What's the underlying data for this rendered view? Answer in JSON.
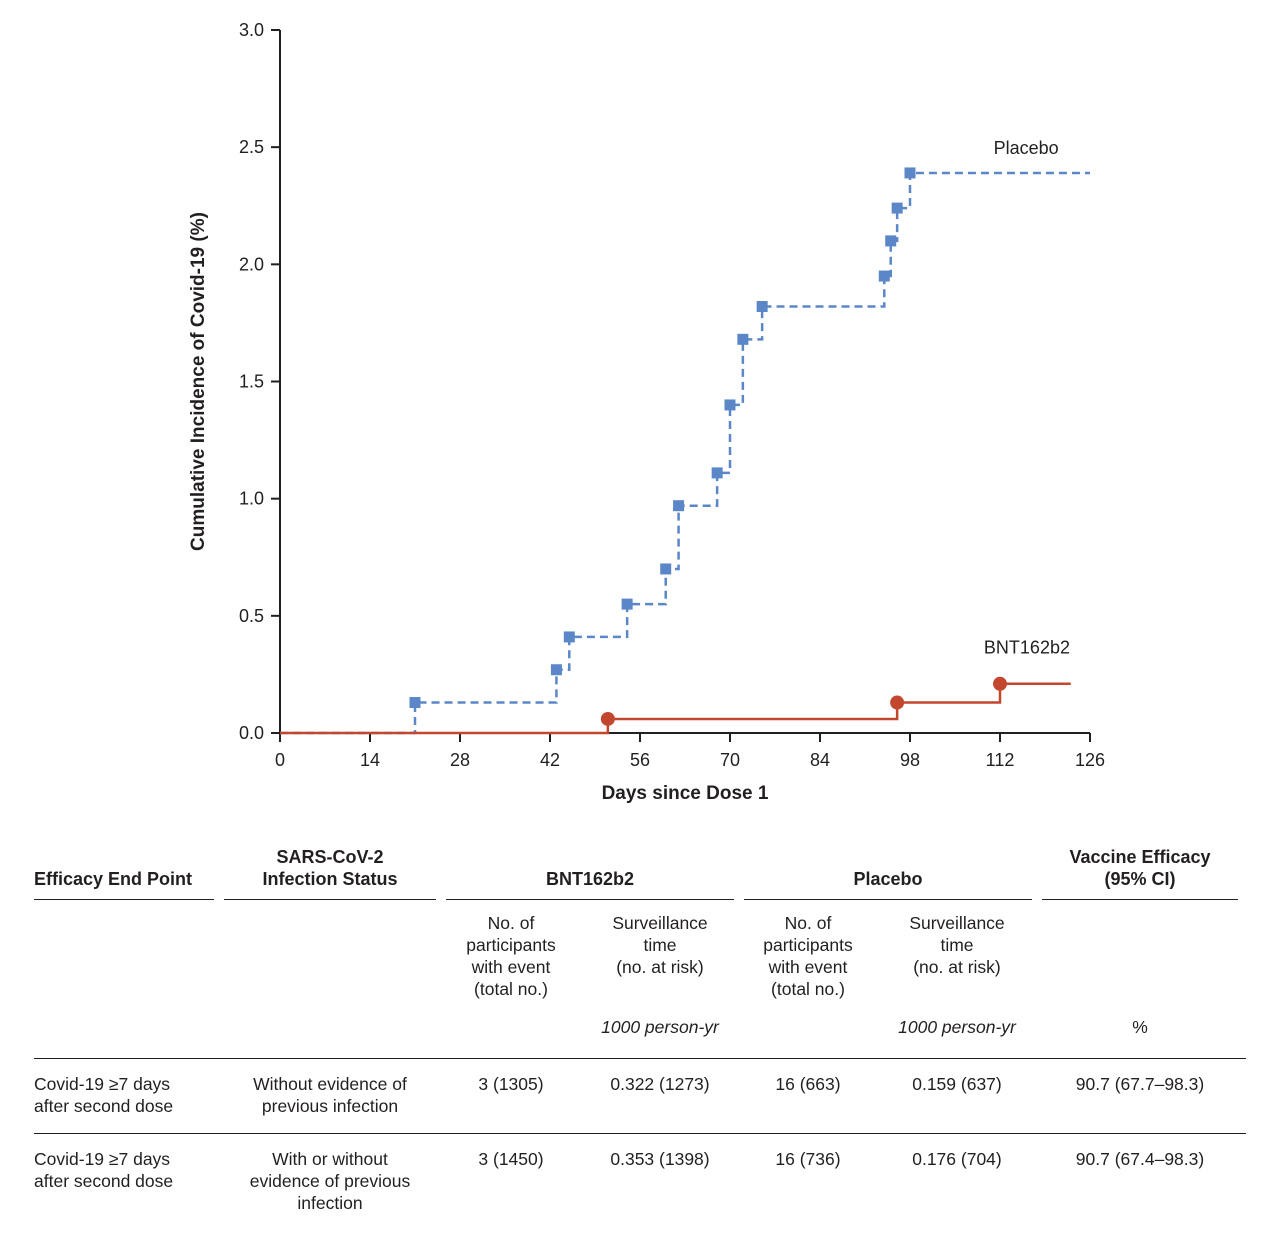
{
  "chart_data": {
    "type": "line",
    "subtype": "cumulative-incidence-step",
    "title": "",
    "xlabel": "Days since Dose 1",
    "ylabel": "Cumulative Incidence of Covid-19 (%)",
    "xlim": [
      0,
      126
    ],
    "ylim": [
      0,
      3.0
    ],
    "x_ticks": [
      0,
      14,
      28,
      42,
      56,
      70,
      84,
      98,
      112,
      126
    ],
    "y_ticks": [
      0.0,
      0.5,
      1.0,
      1.5,
      2.0,
      2.5,
      3.0
    ],
    "grid": false,
    "legend_position": "inline-labels",
    "series": [
      {
        "name": "Placebo",
        "color": "#5b87c8",
        "line_style": "dashed",
        "marker": "square",
        "events": [
          [
            21,
            0.13
          ],
          [
            43,
            0.27
          ],
          [
            45,
            0.41
          ],
          [
            54,
            0.55
          ],
          [
            60,
            0.7
          ],
          [
            62,
            0.97
          ],
          [
            68,
            1.11
          ],
          [
            70,
            1.4
          ],
          [
            72,
            1.68
          ],
          [
            75,
            1.82
          ],
          [
            94,
            1.95
          ],
          [
            95,
            2.1
          ],
          [
            96,
            2.24
          ],
          [
            98,
            2.39
          ]
        ],
        "end_x": 126,
        "label_pos": [
          111,
          2.47
        ]
      },
      {
        "name": "BNT162b2",
        "color": "#c2472e",
        "line_style": "solid",
        "marker": "circle",
        "events": [
          [
            51,
            0.06
          ],
          [
            96,
            0.13
          ],
          [
            112,
            0.21
          ]
        ],
        "end_x": 123,
        "label_pos": [
          109.5,
          0.34
        ]
      }
    ]
  },
  "table": {
    "group_headers": {
      "endpoint": "Efficacy End Point",
      "status": "SARS-CoV-2\nInfection Status",
      "bnt": "BNT162b2",
      "placebo": "Placebo",
      "efficacy": "Vaccine Efficacy\n(95% CI)"
    },
    "sub_headers": {
      "participants": "No. of\nparticipants\nwith event\n(total no.)",
      "surveillance": "Surveillance\ntime\n(no. at risk)"
    },
    "units": {
      "person_yr": "1000 person-yr",
      "percent": "%"
    },
    "rows": [
      {
        "endpoint": "Covid-19 ≥7 days\nafter second dose",
        "status": "Without evidence of\nprevious infection",
        "bnt_events": "3 (1305)",
        "bnt_surv": "0.322 (1273)",
        "placebo_events": "16 (663)",
        "placebo_surv": "0.159 (637)",
        "efficacy": "90.7 (67.7–98.3)"
      },
      {
        "endpoint": "Covid-19 ≥7 days\nafter second dose",
        "status": "With or without\nevidence of previous\ninfection",
        "bnt_events": "3 (1450)",
        "bnt_surv": "0.353 (1398)",
        "placebo_events": "16 (736)",
        "placebo_surv": "0.176 (704)",
        "efficacy": "90.7 (67.4–98.3)"
      }
    ]
  }
}
